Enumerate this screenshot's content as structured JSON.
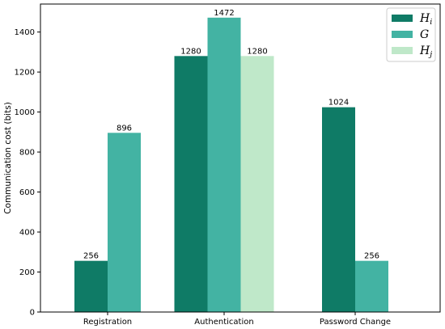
{
  "chart_data": {
    "type": "bar",
    "categories": [
      "Registration",
      "Authentication",
      "Password Change"
    ],
    "series": [
      {
        "name": "H",
        "subscript": "i",
        "color": "#0f7b66",
        "values": [
          256,
          1280,
          1024
        ]
      },
      {
        "name": "G",
        "subscript": "",
        "color": "#43b3a3",
        "values": [
          896,
          1472,
          256
        ]
      },
      {
        "name": "H",
        "subscript": "j",
        "color": "#bfe8c9",
        "values": [
          null,
          1280,
          null
        ]
      }
    ],
    "ylabel": "Communication cost (bits)",
    "xlabel": "",
    "ylim": [
      0,
      1540
    ],
    "yticks": [
      0,
      200,
      400,
      600,
      800,
      1000,
      1200,
      1400
    ],
    "grid": false,
    "legend_position": "top-right"
  }
}
